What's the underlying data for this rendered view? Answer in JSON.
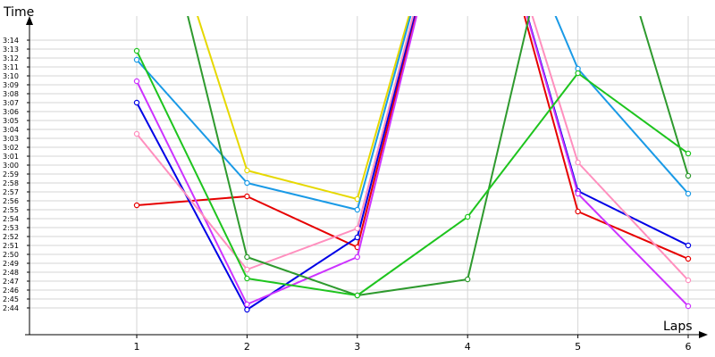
{
  "chart_data": {
    "type": "line",
    "ylabel": "Time",
    "xlabel": "Laps",
    "x": [
      1,
      2,
      3,
      4,
      5,
      6
    ],
    "y_ticks": [
      "2:44",
      "2:45",
      "2:46",
      "2:47",
      "2:48",
      "2:49",
      "2:50",
      "2:51",
      "2:52",
      "2:53",
      "2:54",
      "2:55",
      "2:56",
      "2:57",
      "2:58",
      "2:59",
      "3:00",
      "3:01",
      "3:02",
      "3:03",
      "3:04",
      "3:05",
      "3:06",
      "3:07",
      "3:08",
      "3:09",
      "3:10",
      "3:11",
      "3:12",
      "3:13",
      "3:14"
    ],
    "ylim_seconds": [
      163,
      216
    ],
    "grid": true,
    "series": [
      {
        "color": "#e6d800",
        "values": [
          218,
          179.4,
          176.2,
          220,
          222,
          222
        ]
      },
      {
        "color": "#1a9ae6",
        "values": [
          191.8,
          178,
          175,
          220,
          190.8,
          176.8
        ]
      },
      {
        "color": "#e60000",
        "values": [
          175.5,
          176.5,
          170.8,
          220,
          174.8,
          169.5
        ]
      },
      {
        "color": "#0000e6",
        "values": [
          187,
          163.8,
          171.9,
          220,
          177.1,
          171
        ]
      },
      {
        "color": "#cc33ff",
        "values": [
          189.4,
          164.4,
          169.7,
          220,
          176.8,
          164.2
        ]
      },
      {
        "color": "#ff8fbe",
        "values": [
          183.5,
          168.3,
          172.9,
          220,
          180.3,
          167.1
        ]
      },
      {
        "color": "#2e9a2e",
        "values": [
          220,
          169.7,
          165.4,
          167.2,
          220,
          178.8
        ]
      },
      {
        "color": "#1ec41e",
        "values": [
          192.8,
          167.3,
          165.4,
          174.2,
          190.3,
          181.3
        ]
      }
    ]
  }
}
